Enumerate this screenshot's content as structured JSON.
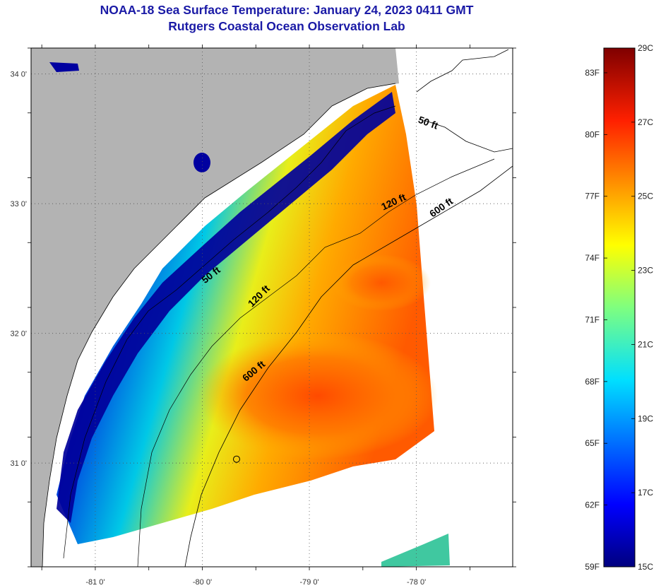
{
  "header": {
    "title": "NOAA-18 Sea Surface Temperature:  January 24, 2023 0411 GMT",
    "subtitle": "Rutgers Coastal Ocean Observation Lab"
  },
  "map": {
    "lon_range": [
      -81.6,
      -77.1
    ],
    "lat_range": [
      30.2,
      34.2
    ],
    "lat_ticks": [
      {
        "value": 34,
        "label": "34 0'"
      },
      {
        "value": 33,
        "label": "33 0'"
      },
      {
        "value": 32,
        "label": "32 0'"
      },
      {
        "value": 31,
        "label": "31 0'"
      }
    ],
    "lon_ticks": [
      {
        "value": -81,
        "label": "-81 0'"
      },
      {
        "value": -80,
        "label": "-80 0'"
      },
      {
        "value": -79,
        "label": "-79 0'"
      },
      {
        "value": -78,
        "label": "-78 0'"
      }
    ],
    "grid": "dotted",
    "colors": {
      "land": "#b3b3b3",
      "cold": "#00008f",
      "mid": "#00c8e6",
      "warm": "#ff5a00",
      "no_data": "#ffffff"
    },
    "contour_labels": [
      {
        "text": "50 ft",
        "lon": -77.9,
        "lat": 33.6,
        "rotation": 20
      },
      {
        "text": "120 ft",
        "lon": -78.2,
        "lat": 32.99,
        "rotation": -25
      },
      {
        "text": "600 ft",
        "lon": -77.75,
        "lat": 32.95,
        "rotation": -35
      },
      {
        "text": "50 ft",
        "lon": -79.9,
        "lat": 32.43,
        "rotation": -38
      },
      {
        "text": "120 ft",
        "lon": -79.45,
        "lat": 32.27,
        "rotation": -45
      },
      {
        "text": "600 ft",
        "lon": -79.5,
        "lat": 31.69,
        "rotation": -40
      }
    ],
    "station_marker": {
      "lon": -79.68,
      "lat": 31.03
    }
  },
  "colorbar": {
    "range_c": [
      15,
      29
    ],
    "fahrenheit_labels": [
      "83F",
      "80F",
      "77F",
      "74F",
      "71F",
      "68F",
      "65F",
      "62F",
      "59F"
    ],
    "celsius_labels": [
      "29C",
      "27C",
      "25C",
      "23C",
      "21C",
      "19C",
      "17C",
      "15C"
    ]
  }
}
